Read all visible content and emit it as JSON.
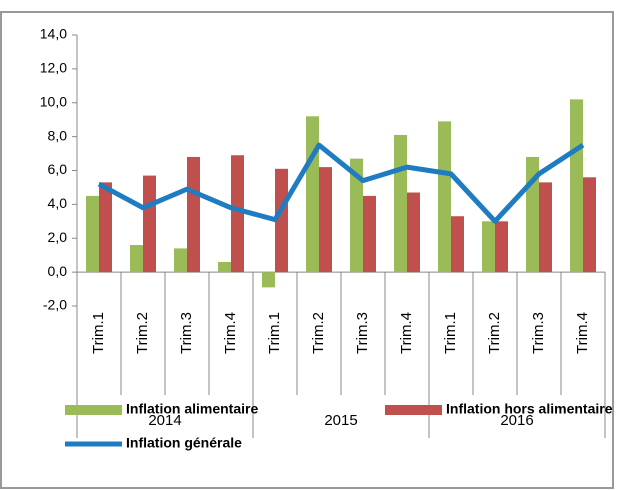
{
  "chart_data": {
    "type": "bar_line",
    "categories": [
      "Trim.1",
      "Trim.2",
      "Trim.3",
      "Trim.4",
      "Trim.1",
      "Trim.2",
      "Trim.3",
      "Trim.4",
      "Trim.1",
      "Trim.2",
      "Trim.3",
      "Trim.4"
    ],
    "groups": [
      "2014",
      "2015",
      "2016"
    ],
    "series": [
      {
        "name": "Inflation alimentaire",
        "color": "#9bbb59",
        "kind": "bar",
        "values": [
          4.5,
          1.6,
          1.4,
          0.6,
          -0.9,
          9.2,
          6.7,
          8.1,
          8.9,
          3.0,
          6.8,
          10.2
        ]
      },
      {
        "name": "Inflation hors alimentaire",
        "color": "#c0504d",
        "kind": "bar",
        "values": [
          5.3,
          5.7,
          6.8,
          6.9,
          6.1,
          6.2,
          4.5,
          4.7,
          3.3,
          3.0,
          5.3,
          5.6
        ]
      },
      {
        "name": "Inflation générale",
        "color": "#1f7cc1",
        "kind": "line",
        "values": [
          5.2,
          3.8,
          4.9,
          3.8,
          3.1,
          7.5,
          5.4,
          6.2,
          5.8,
          3.0,
          5.8,
          7.5
        ]
      }
    ],
    "ylim": [
      -2,
      14
    ],
    "yticks": [
      {
        "value": -2,
        "label": "-2,0"
      },
      {
        "value": 0,
        "label": "0,0"
      },
      {
        "value": 2,
        "label": "2,0"
      },
      {
        "value": 4,
        "label": "4,0"
      },
      {
        "value": 6,
        "label": "6,0"
      },
      {
        "value": 8,
        "label": "8,0"
      },
      {
        "value": 10,
        "label": "10,0"
      },
      {
        "value": 12,
        "label": "12,0"
      },
      {
        "value": 14,
        "label": "14,0"
      }
    ]
  }
}
